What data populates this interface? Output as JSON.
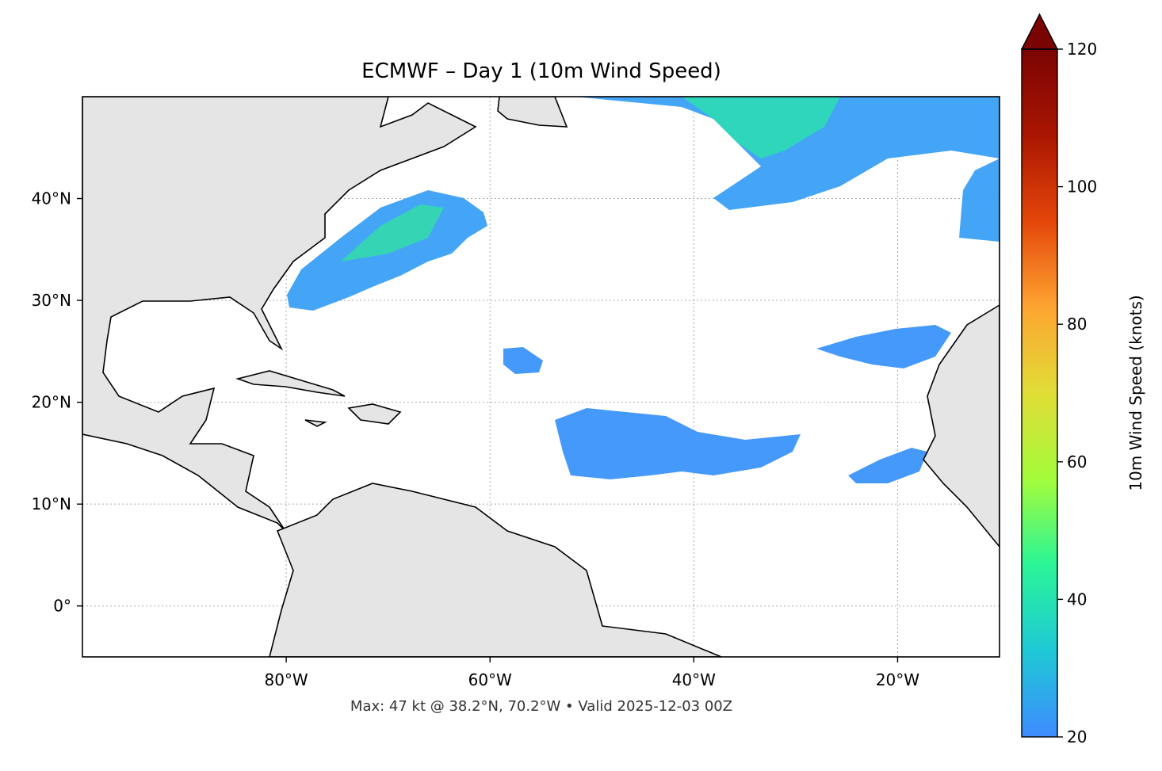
{
  "chart_data": {
    "type": "map",
    "title": "ECMWF – Day 1 (10m Wind Speed)",
    "footer": "Max: 47 kt @ 38.2°N, 70.2°W • Valid 2025-12-03 00Z",
    "xlim": [
      -100,
      -10
    ],
    "ylim": [
      -5,
      50
    ],
    "xticks": [
      {
        "value": -80,
        "label": "80°W"
      },
      {
        "value": -60,
        "label": "60°W"
      },
      {
        "value": -40,
        "label": "40°W"
      },
      {
        "value": -20,
        "label": "20°W"
      }
    ],
    "yticks": [
      {
        "value": 0,
        "label": "0°"
      },
      {
        "value": 10,
        "label": "10°N"
      },
      {
        "value": 20,
        "label": "20°N"
      },
      {
        "value": 30,
        "label": "30°N"
      },
      {
        "value": 40,
        "label": "40°N"
      }
    ],
    "grid": true,
    "colorbar": {
      "label": "10m Wind Speed (knots)",
      "lim": [
        20,
        120
      ],
      "ticks": [
        20,
        40,
        60,
        80,
        100,
        120
      ],
      "extend": "max",
      "colors": [
        "#3e8cff",
        "#1fc8d6",
        "#2af597",
        "#a4fc3b",
        "#e1dd37",
        "#fea431",
        "#e4460a",
        "#a91601",
        "#7a0403"
      ]
    }
  }
}
